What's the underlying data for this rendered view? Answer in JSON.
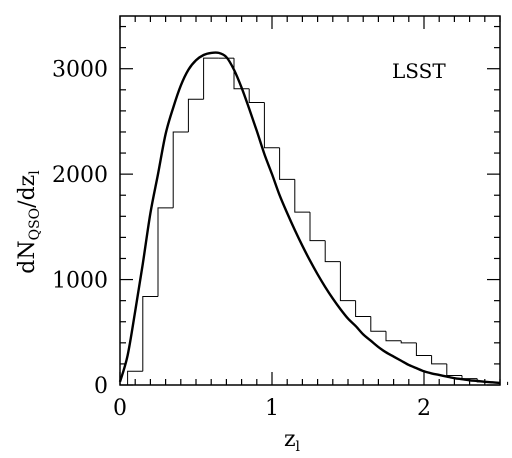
{
  "chart_data": {
    "type": "line",
    "annotation": "LSST",
    "xlabel": {
      "main": "z",
      "sub": "l"
    },
    "ylabel": {
      "main_1": "dN",
      "sub_1": "QSO",
      "main_2": "/dz",
      "sub_2": "l"
    },
    "xlim": [
      0,
      2.5
    ],
    "ylim": [
      0,
      3500
    ],
    "x_ticks": [
      0,
      1,
      2
    ],
    "x_tick_labels": [
      "0",
      "1",
      "2"
    ],
    "y_ticks": [
      0,
      1000,
      2000,
      3000
    ],
    "y_tick_labels": [
      "0",
      "1000",
      "2000",
      "3000"
    ],
    "x_minor_step": 0.1,
    "y_minor_step": 200,
    "grid": false,
    "series": [
      {
        "kind": "histogram",
        "bin_width": 0.1,
        "bin_edges": [
          0.05,
          0.15,
          0.25,
          0.35,
          0.45,
          0.55,
          0.65,
          0.75,
          0.85,
          0.95,
          1.05,
          1.15,
          1.25,
          1.35,
          1.45,
          1.55,
          1.65,
          1.75,
          1.85,
          1.95,
          2.05,
          2.15,
          2.25,
          2.35,
          2.45
        ],
        "values": [
          130,
          840,
          1680,
          2400,
          2710,
          3100,
          3100,
          2810,
          2680,
          2250,
          1950,
          1640,
          1370,
          1170,
          800,
          650,
          510,
          420,
          400,
          280,
          200,
          90,
          60,
          30
        ]
      },
      {
        "kind": "curve",
        "x": [
          0.0,
          0.05,
          0.1,
          0.15,
          0.2,
          0.25,
          0.3,
          0.35,
          0.4,
          0.45,
          0.5,
          0.55,
          0.6,
          0.65,
          0.7,
          0.75,
          0.8,
          0.85,
          0.9,
          0.95,
          1.0,
          1.05,
          1.1,
          1.15,
          1.2,
          1.25,
          1.3,
          1.35,
          1.4,
          1.45,
          1.5,
          1.55,
          1.6,
          1.65,
          1.7,
          1.75,
          1.8,
          1.85,
          1.9,
          1.95,
          2.0,
          2.05,
          2.1,
          2.15,
          2.2,
          2.25,
          2.3,
          2.35,
          2.4,
          2.45,
          2.5
        ],
        "y": [
          30,
          280,
          700,
          1150,
          1630,
          2000,
          2380,
          2630,
          2840,
          2990,
          3080,
          3130,
          3150,
          3150,
          3110,
          2990,
          2820,
          2620,
          2410,
          2190,
          2000,
          1800,
          1630,
          1470,
          1320,
          1180,
          1050,
          930,
          820,
          720,
          630,
          560,
          480,
          420,
          360,
          310,
          270,
          230,
          190,
          160,
          130,
          110,
          95,
          80,
          65,
          55,
          45,
          38,
          30,
          25,
          20
        ]
      }
    ]
  }
}
